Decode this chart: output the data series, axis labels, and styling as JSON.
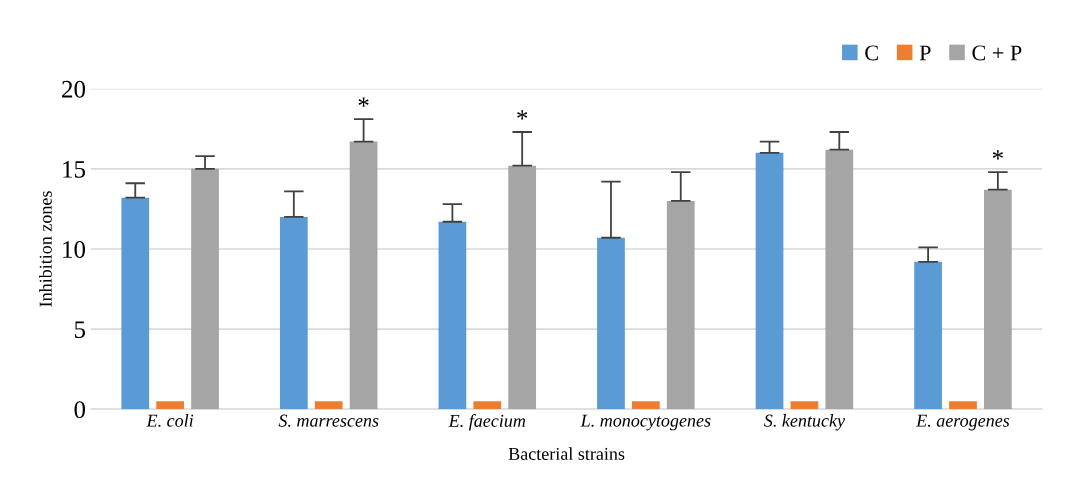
{
  "chart_data": {
    "type": "bar",
    "xlabel": "Bacterial strains",
    "ylabel": "Inhibition zones",
    "categories": [
      "E. coli",
      "S. marrescens",
      "E. faecium",
      "L. monocytogenes",
      "S. kentucky",
      "E. aerogenes"
    ],
    "series": [
      {
        "name": "C",
        "color": "#5b9bd5",
        "values": [
          13.2,
          12.0,
          11.7,
          10.7,
          16.0,
          9.2
        ],
        "errors": [
          0.9,
          1.6,
          1.1,
          3.5,
          0.7,
          0.9
        ]
      },
      {
        "name": "P",
        "color": "#ed7d31",
        "values": [
          0.5,
          0.5,
          0.5,
          0.5,
          0.5,
          0.5
        ]
      },
      {
        "name": "C + P",
        "color": "#a5a5a5",
        "values": [
          15.0,
          16.7,
          15.2,
          13.0,
          16.2,
          13.7
        ],
        "errors": [
          0.8,
          1.4,
          2.1,
          1.8,
          1.1,
          1.1
        ],
        "value_labels": [
          null,
          "*",
          "*",
          null,
          null,
          "*"
        ]
      }
    ],
    "ylim": [
      0,
      20
    ],
    "yticks": [
      0,
      5,
      10,
      15,
      20
    ],
    "grid": "y",
    "legend": "top right"
  }
}
